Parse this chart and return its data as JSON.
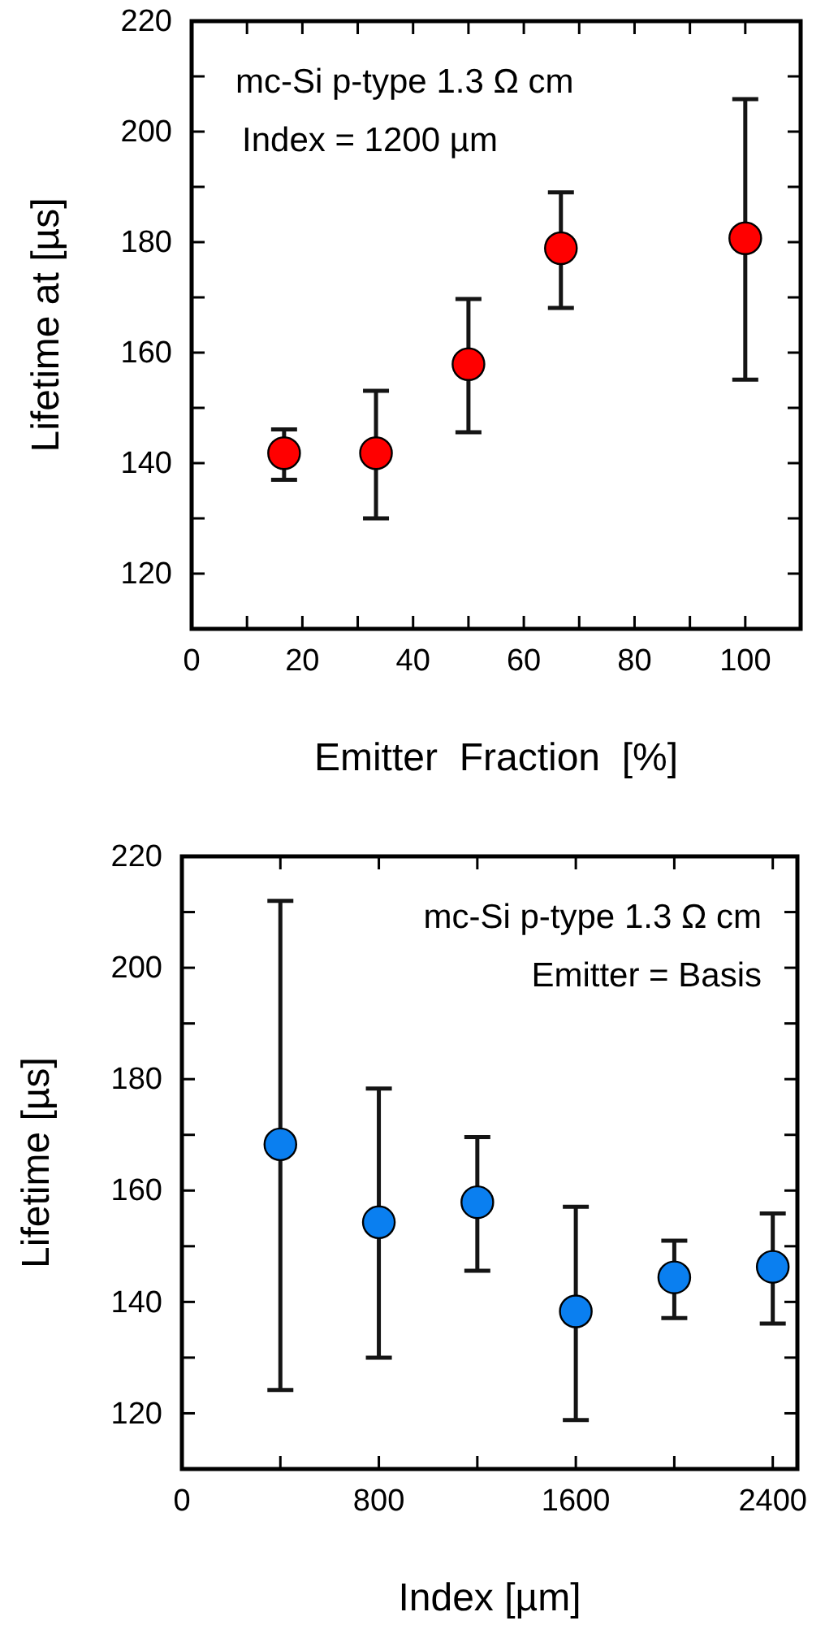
{
  "chart_data": [
    {
      "type": "scatter",
      "xlabel": "Emitter  Fraction  [%]",
      "ylabel": "Lifetime at [µs]",
      "annotations": [
        "mc-Si p-type 1.3 Ω cm",
        "Index = 1200 µm"
      ],
      "marker": "circle",
      "grid": false,
      "x": [
        16.7,
        33.3,
        50,
        66.7,
        100
      ],
      "series": [
        {
          "color": "#ff0000",
          "values": [
            141.8,
            141.8,
            157.9,
            178.9,
            180.7
          ],
          "errors": [
            [
              137.0,
              146.1
            ],
            [
              130.0,
              153.1
            ],
            [
              145.6,
              169.7
            ],
            [
              168.1,
              189.0
            ],
            [
              155.1,
              205.9
            ]
          ]
        }
      ],
      "xlim": [
        0,
        110
      ],
      "xticks": [
        0,
        {
          "value": 10,
          "label": null
        },
        20,
        {
          "value": 30,
          "label": null
        },
        40,
        {
          "value": 50,
          "label": null
        },
        60,
        {
          "value": 70,
          "label": null
        },
        80,
        {
          "value": 90,
          "label": null
        },
        100
      ],
      "ylim": [
        110,
        220
      ],
      "yticks": [
        120,
        {
          "value": 130,
          "label": null
        },
        140,
        {
          "value": 150,
          "label": null
        },
        160,
        {
          "value": 170,
          "label": null
        },
        180,
        {
          "value": 190,
          "label": null
        },
        200,
        {
          "value": 210,
          "label": null
        },
        220
      ]
    },
    {
      "type": "scatter",
      "xlabel": "Index [µm]",
      "ylabel": "Lifetime [µs]",
      "annotations": [
        "mc-Si p-type 1.3 Ω cm",
        "Emitter = Basis"
      ],
      "marker": "circle",
      "grid": false,
      "x": [
        400,
        800,
        1200,
        1600,
        2000,
        2400
      ],
      "series": [
        {
          "color": "#0a7ff0",
          "values": [
            168.3,
            154.3,
            157.9,
            138.3,
            144.4,
            146.3
          ],
          "errors": [
            [
              124.2,
              212.0
            ],
            [
              130.0,
              178.3
            ],
            [
              145.6,
              169.6
            ],
            [
              118.8,
              157.1
            ],
            [
              137.1,
              151.0
            ],
            [
              136.1,
              155.9
            ]
          ]
        }
      ],
      "xlim": [
        0,
        2500
      ],
      "xticks": [
        0,
        {
          "value": 400,
          "label": null
        },
        800,
        {
          "value": 1200,
          "label": null
        },
        1600,
        {
          "value": 2000,
          "label": null
        },
        2400
      ],
      "ylim": [
        110,
        220
      ],
      "yticks": [
        120,
        {
          "value": 130,
          "label": null
        },
        140,
        {
          "value": 150,
          "label": null
        },
        160,
        {
          "value": 170,
          "label": null
        },
        180,
        {
          "value": 190,
          "label": null
        },
        200,
        {
          "value": 210,
          "label": null
        },
        220
      ]
    }
  ]
}
